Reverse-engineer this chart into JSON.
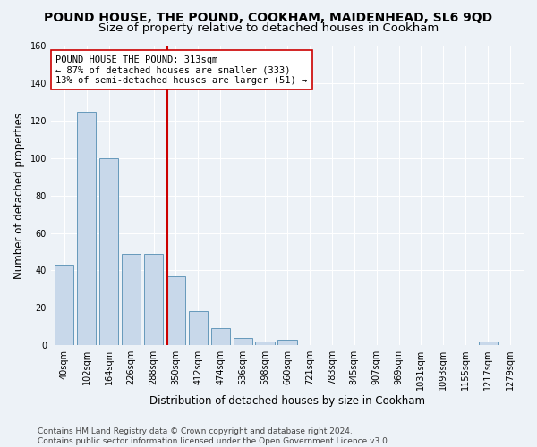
{
  "title": "POUND HOUSE, THE POUND, COOKHAM, MAIDENHEAD, SL6 9QD",
  "subtitle": "Size of property relative to detached houses in Cookham",
  "xlabel": "Distribution of detached houses by size in Cookham",
  "ylabel": "Number of detached properties",
  "bar_color": "#c8d8ea",
  "bar_edge_color": "#6699bb",
  "categories": [
    "40sqm",
    "102sqm",
    "164sqm",
    "226sqm",
    "288sqm",
    "350sqm",
    "412sqm",
    "474sqm",
    "536sqm",
    "598sqm",
    "660sqm",
    "721sqm",
    "783sqm",
    "845sqm",
    "907sqm",
    "969sqm",
    "1031sqm",
    "1093sqm",
    "1155sqm",
    "1217sqm",
    "1279sqm"
  ],
  "values": [
    43,
    125,
    100,
    49,
    49,
    37,
    18,
    9,
    4,
    2,
    3,
    0,
    0,
    0,
    0,
    0,
    0,
    0,
    0,
    2,
    0
  ],
  "ylim": [
    0,
    160
  ],
  "yticks": [
    0,
    20,
    40,
    60,
    80,
    100,
    120,
    140,
    160
  ],
  "property_line_x": 4.62,
  "property_line_color": "#cc0000",
  "annotation_text": "POUND HOUSE THE POUND: 313sqm\n← 87% of detached houses are smaller (333)\n13% of semi-detached houses are larger (51) →",
  "annotation_box_color": "#ffffff",
  "annotation_box_edge_color": "#cc0000",
  "background_color": "#edf2f7",
  "grid_color": "#ffffff",
  "footer_line1": "Contains HM Land Registry data © Crown copyright and database right 2024.",
  "footer_line2": "Contains public sector information licensed under the Open Government Licence v3.0.",
  "title_fontsize": 10,
  "subtitle_fontsize": 9.5,
  "xlabel_fontsize": 8.5,
  "ylabel_fontsize": 8.5,
  "tick_fontsize": 7,
  "annotation_fontsize": 7.5,
  "footer_fontsize": 6.5
}
